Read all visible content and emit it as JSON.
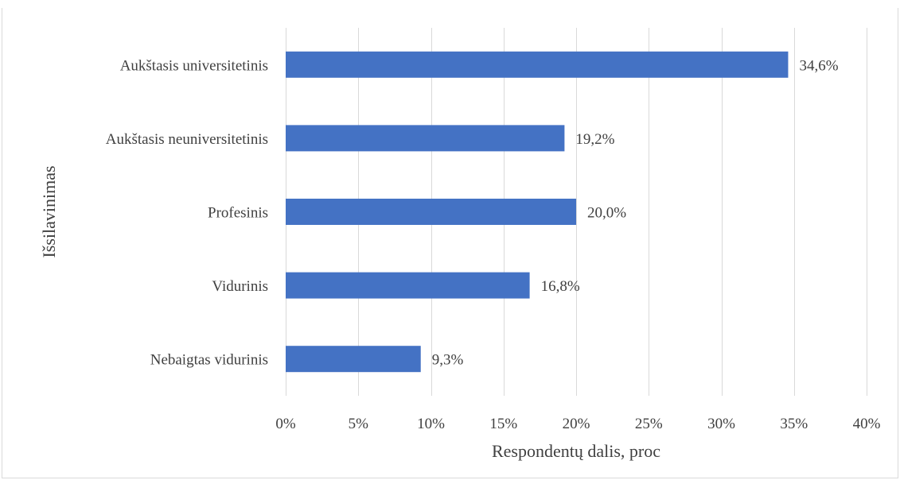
{
  "top_text": "",
  "chart_data": {
    "type": "bar",
    "orientation": "horizontal",
    "categories": [
      "Aukštasis universitetinis",
      "Aukštasis neuniversitetinis",
      "Profesinis",
      "Vidurinis",
      "Nebaigtas vidurinis"
    ],
    "values": [
      34.6,
      19.2,
      20.0,
      16.8,
      9.3
    ],
    "data_labels": [
      "34,6%",
      "19,2%",
      "20,0%",
      "16,8%",
      "9,3%"
    ],
    "xlabel": "Respondentų dalis, proc",
    "ylabel": "Išsilavinimas",
    "xlim": [
      0,
      40
    ],
    "x_ticks": [
      0,
      5,
      10,
      15,
      20,
      25,
      30,
      35,
      40
    ],
    "x_tick_labels": [
      "0%",
      "5%",
      "10%",
      "15%",
      "20%",
      "25%",
      "30%",
      "35%",
      "40%"
    ],
    "grid": "vertical",
    "legend": "none",
    "colors": {
      "bar": "#4472c4",
      "grid": "#d9d9d9",
      "text": "#404040"
    }
  }
}
